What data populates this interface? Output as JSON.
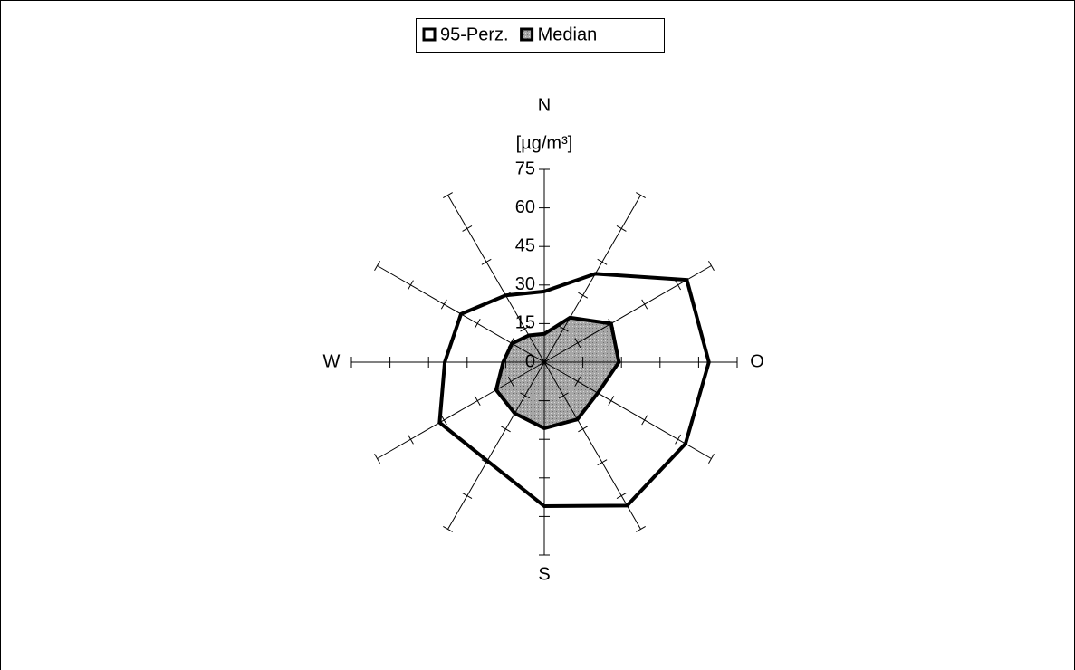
{
  "chart_data": {
    "type": "radar",
    "categories": [
      "N",
      null,
      null,
      "O",
      null,
      null,
      "S",
      null,
      null,
      "W",
      null,
      null
    ],
    "axis_label": "[µg/m³]",
    "ylim": [
      0,
      75
    ],
    "yticks": [
      0,
      15,
      30,
      45,
      60,
      75
    ],
    "legend": "top",
    "series": [
      {
        "name": "95-Perz.",
        "color": "#ffffff",
        "values": [
          27.5,
          39.7,
          64,
          64,
          63.4,
          64.4,
          56,
          44.3,
          47,
          38.7,
          37.4,
          30
        ]
      },
      {
        "name": "Median",
        "color": "#a6a6a6",
        "values": [
          11,
          20,
          30,
          29,
          24,
          25.7,
          25.7,
          23,
          21.6,
          16,
          14.5,
          12
        ]
      }
    ]
  }
}
